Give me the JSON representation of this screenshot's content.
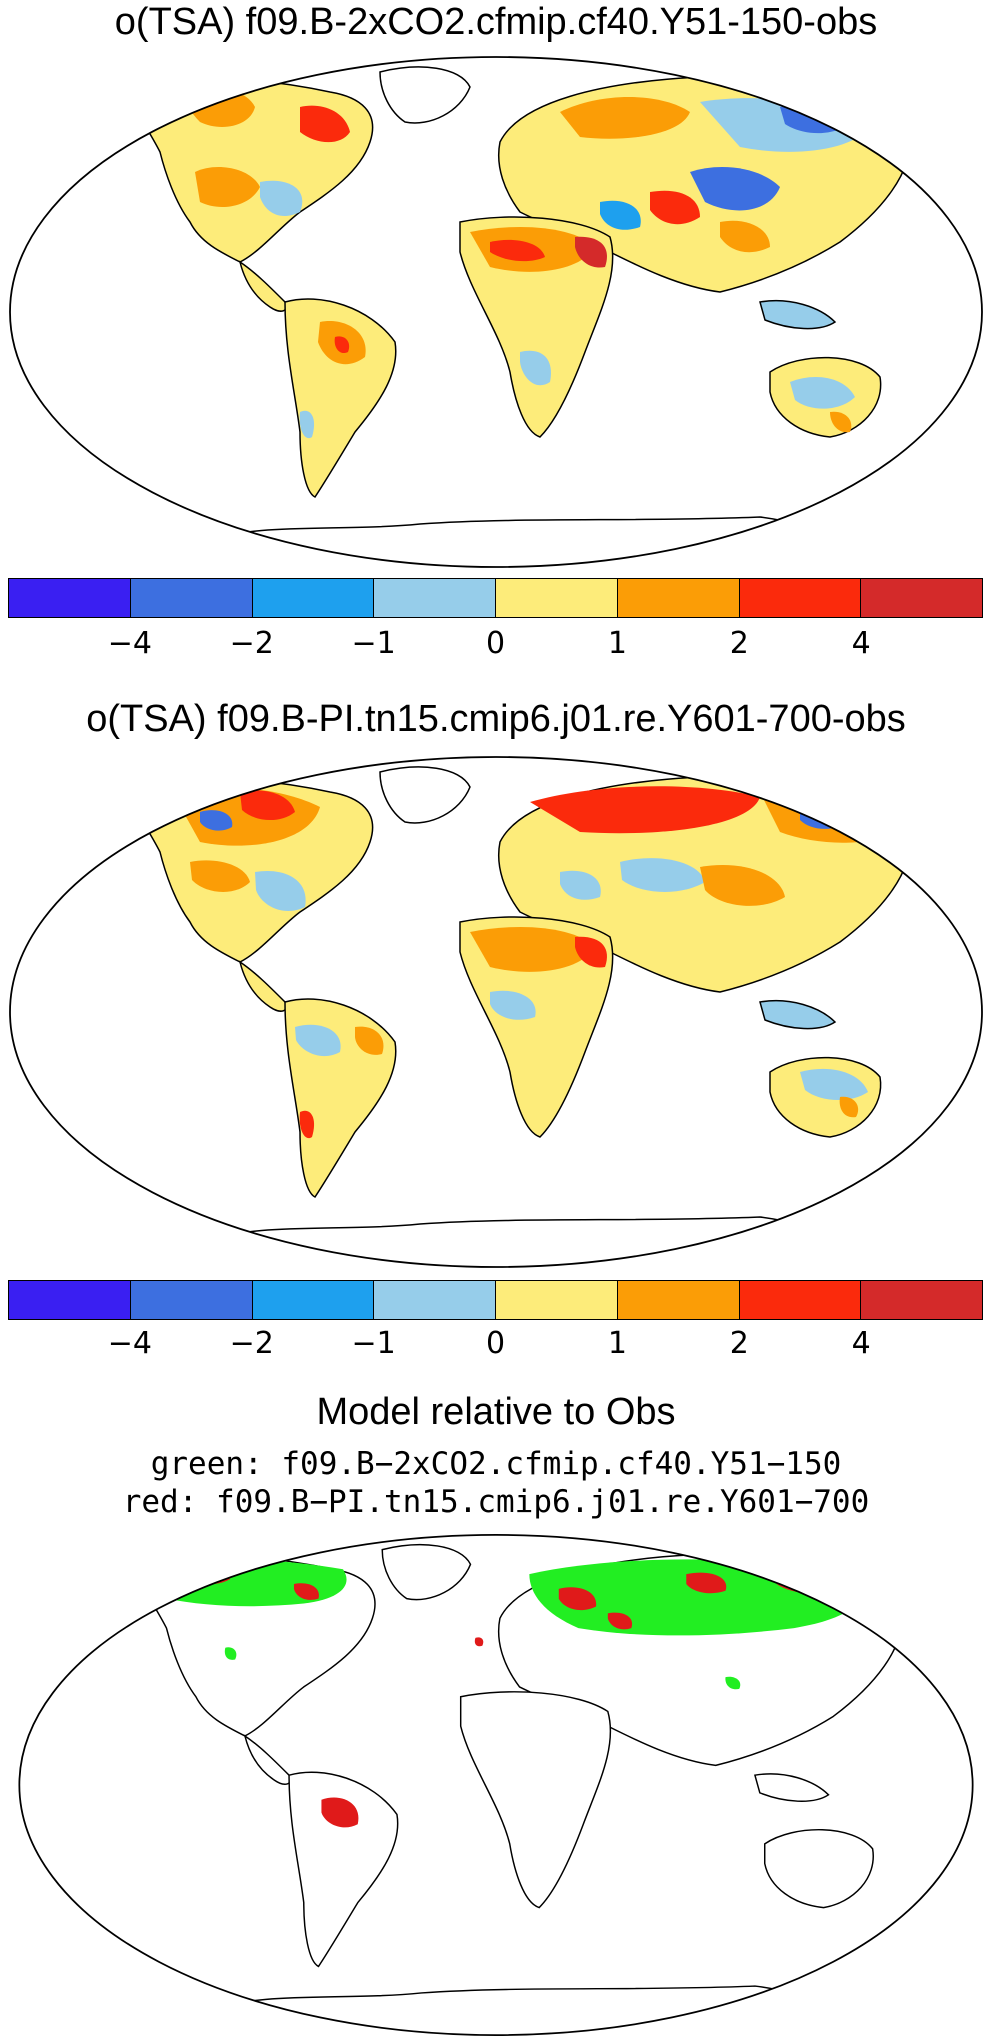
{
  "panels": [
    {
      "title": "o(TSA) f09.B-2xCO2.cfmip.cf40.Y51-150-obs",
      "colorbar": {
        "colors": [
          "#3a1ff2",
          "#3d6fe0",
          "#1ea0ee",
          "#96cdea",
          "#fdec7a",
          "#fb9d06",
          "#fb2a0c",
          "#d42a2a"
        ],
        "tick_labels": [
          "−4",
          "−2",
          "−1",
          "0",
          "1",
          "2",
          "4"
        ]
      }
    },
    {
      "title": "o(TSA) f09.B-PI.tn15.cmip6.j01.re.Y601-700-obs",
      "colorbar": {
        "colors": [
          "#3a1ff2",
          "#3d6fe0",
          "#1ea0ee",
          "#96cdea",
          "#fdec7a",
          "#fb9d06",
          "#fb2a0c",
          "#d42a2a"
        ],
        "tick_labels": [
          "−4",
          "−2",
          "−1",
          "0",
          "1",
          "2",
          "4"
        ]
      }
    }
  ],
  "comparison": {
    "title": "Model relative to Obs",
    "legend_green": "green: f09.B−2xCO2.cfmip.cf40.Y51−150",
    "legend_red": "red: f09.B−PI.tn15.cmip6.j01.re.Y601−700",
    "green_color": "#22ee22",
    "red_color": "#e01a1a"
  }
}
